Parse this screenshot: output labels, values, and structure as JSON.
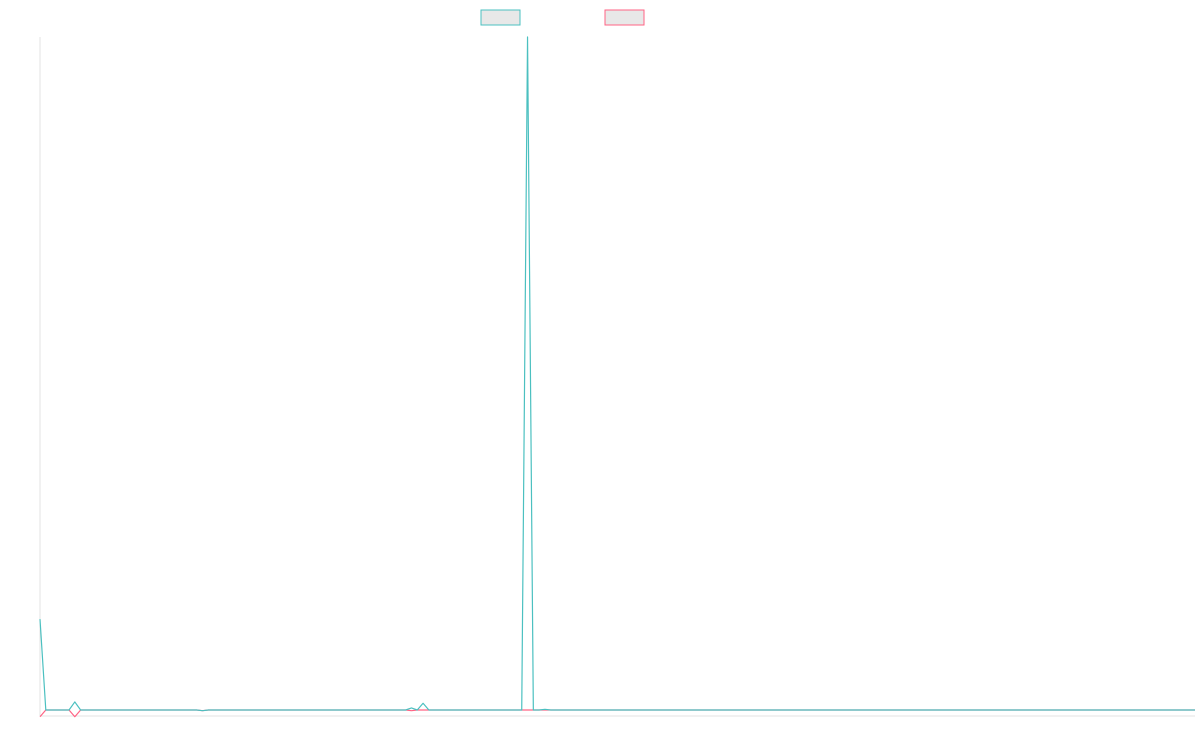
{
  "chart_data": {
    "type": "line",
    "title": "",
    "xlabel": "",
    "ylabel": "",
    "grid": false,
    "legend_position": "top-center",
    "x_count": 200,
    "ylim": [
      -0.02,
      1.0
    ],
    "series": [
      {
        "color": "#4bc0c0",
        "fill": "#e8e8e8",
        "points": [
          [
            0,
            0.135
          ],
          [
            1,
            0.0
          ],
          [
            5,
            0.0
          ],
          [
            6,
            0.012
          ],
          [
            7,
            0.0
          ],
          [
            27,
            0.0
          ],
          [
            28,
            -0.001
          ],
          [
            29,
            0.0
          ],
          [
            63,
            0.0
          ],
          [
            64,
            0.003
          ],
          [
            65,
            0.0
          ],
          [
            66,
            0.01
          ],
          [
            67,
            0.0
          ],
          [
            83,
            0.0
          ],
          [
            84,
            1.0
          ],
          [
            85,
            0.0
          ],
          [
            86,
            0.0
          ],
          [
            87,
            0.001
          ],
          [
            88,
            0.0
          ],
          [
            199,
            0.0
          ]
        ]
      },
      {
        "color": "#ff6384",
        "fill": "#e8e8e8",
        "points": [
          [
            0,
            -0.01
          ],
          [
            1,
            0.0
          ],
          [
            5,
            0.0
          ],
          [
            6,
            -0.01
          ],
          [
            7,
            0.0
          ],
          [
            27,
            0.0
          ],
          [
            28,
            -0.001
          ],
          [
            29,
            0.0
          ],
          [
            63,
            0.0
          ],
          [
            64,
            -0.001
          ],
          [
            65,
            0.0
          ],
          [
            199,
            0.0
          ]
        ]
      }
    ]
  }
}
